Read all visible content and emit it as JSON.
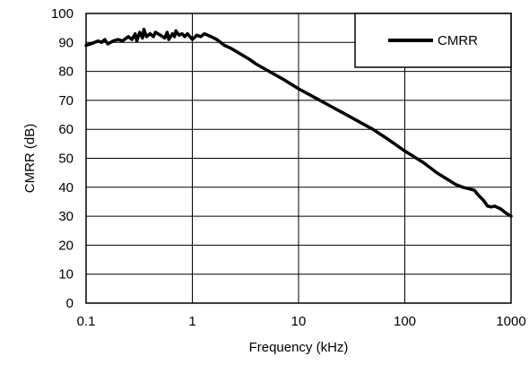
{
  "chart_data": {
    "type": "line",
    "title": "",
    "xlabel": "Frequency (kHz)",
    "ylabel": "CMRR (dB)",
    "x_scale": "log",
    "xlim": [
      0.1,
      1000
    ],
    "ylim": [
      0,
      100
    ],
    "x_ticks": [
      {
        "value": 0.1,
        "label": "0.1"
      },
      {
        "value": 1,
        "label": "1"
      },
      {
        "value": 10,
        "label": "10"
      },
      {
        "value": 100,
        "label": "100"
      },
      {
        "value": 1000,
        "label": "1000"
      }
    ],
    "y_ticks": [
      {
        "value": 0,
        "label": "0"
      },
      {
        "value": 10,
        "label": "10"
      },
      {
        "value": 20,
        "label": "20"
      },
      {
        "value": 30,
        "label": "30"
      },
      {
        "value": 40,
        "label": "40"
      },
      {
        "value": 50,
        "label": "50"
      },
      {
        "value": 60,
        "label": "60"
      },
      {
        "value": 70,
        "label": "70"
      },
      {
        "value": 80,
        "label": "80"
      },
      {
        "value": 90,
        "label": "90"
      },
      {
        "value": 100,
        "label": "100"
      }
    ],
    "grid": true,
    "legend": {
      "position": "top-right",
      "entries": [
        "CMRR"
      ]
    },
    "series": [
      {
        "name": "CMRR",
        "color": "#000000",
        "points": [
          [
            0.1,
            89
          ],
          [
            0.11,
            89.5
          ],
          [
            0.12,
            90
          ],
          [
            0.13,
            90.5
          ],
          [
            0.14,
            90
          ],
          [
            0.15,
            91
          ],
          [
            0.16,
            89.5
          ],
          [
            0.18,
            90.5
          ],
          [
            0.2,
            91
          ],
          [
            0.22,
            90.5
          ],
          [
            0.25,
            92
          ],
          [
            0.27,
            91
          ],
          [
            0.29,
            93
          ],
          [
            0.3,
            90.5
          ],
          [
            0.32,
            93.5
          ],
          [
            0.34,
            91.5
          ],
          [
            0.35,
            94.5
          ],
          [
            0.37,
            92
          ],
          [
            0.4,
            93
          ],
          [
            0.43,
            92
          ],
          [
            0.45,
            93.5
          ],
          [
            0.5,
            92.5
          ],
          [
            0.55,
            91.5
          ],
          [
            0.58,
            93.5
          ],
          [
            0.6,
            91
          ],
          [
            0.65,
            93
          ],
          [
            0.68,
            92
          ],
          [
            0.7,
            94
          ],
          [
            0.75,
            92.5
          ],
          [
            0.8,
            93
          ],
          [
            0.85,
            92
          ],
          [
            0.9,
            93
          ],
          [
            0.95,
            92
          ],
          [
            1.0,
            91
          ],
          [
            1.1,
            92.5
          ],
          [
            1.2,
            92
          ],
          [
            1.3,
            93
          ],
          [
            1.5,
            92
          ],
          [
            1.7,
            91
          ],
          [
            2.0,
            89
          ],
          [
            2.3,
            88
          ],
          [
            2.7,
            86.5
          ],
          [
            3.0,
            85.5
          ],
          [
            3.5,
            84
          ],
          [
            4.0,
            82.5
          ],
          [
            5.0,
            80.5
          ],
          [
            7.0,
            77.5
          ],
          [
            10,
            74
          ],
          [
            15,
            70.5
          ],
          [
            20,
            68
          ],
          [
            30,
            64.5
          ],
          [
            50,
            60
          ],
          [
            70,
            56.5
          ],
          [
            100,
            52.5
          ],
          [
            150,
            48.5
          ],
          [
            200,
            45
          ],
          [
            300,
            41
          ],
          [
            350,
            40
          ],
          [
            400,
            39.5
          ],
          [
            450,
            39
          ],
          [
            500,
            37
          ],
          [
            550,
            35.5
          ],
          [
            600,
            33.5
          ],
          [
            650,
            33.2
          ],
          [
            700,
            33.5
          ],
          [
            800,
            32.5
          ],
          [
            900,
            31
          ],
          [
            1000,
            30
          ]
        ]
      }
    ]
  }
}
